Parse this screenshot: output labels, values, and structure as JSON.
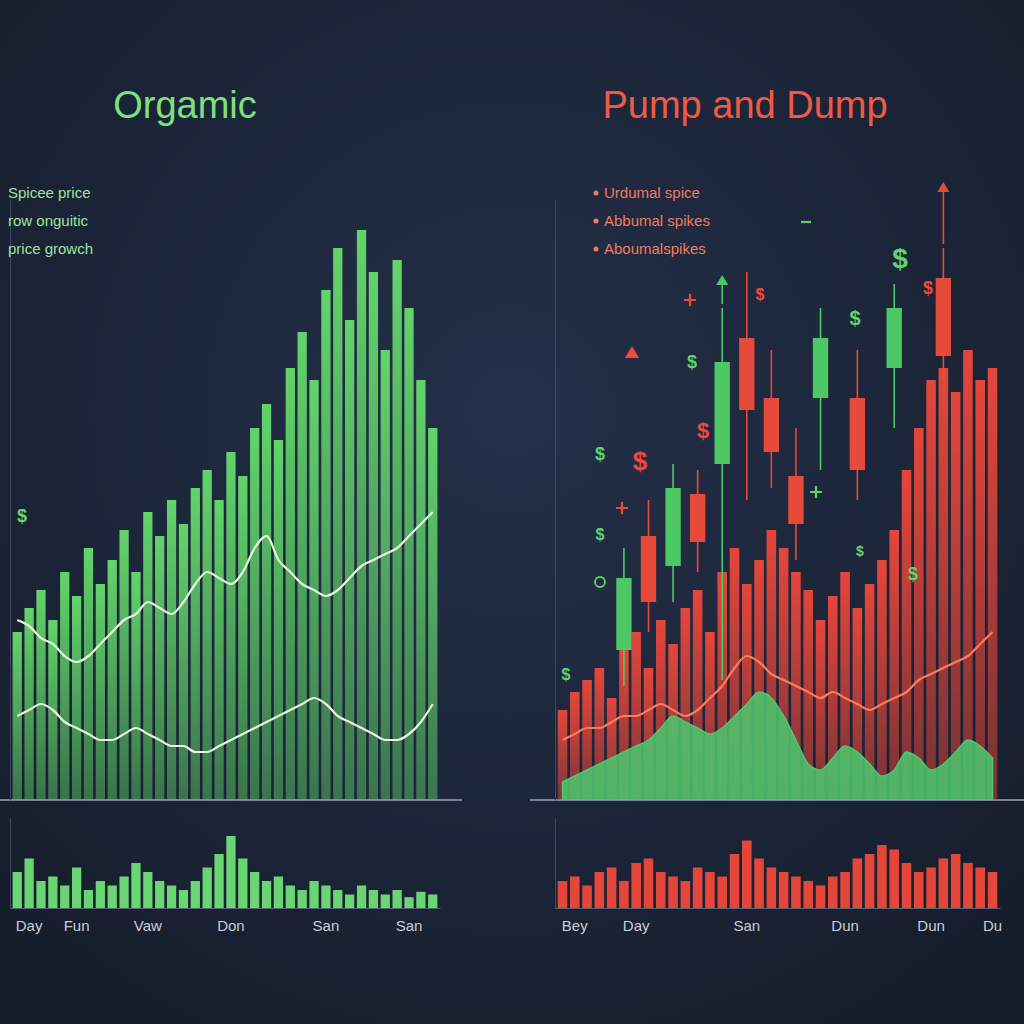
{
  "chart_data": [
    {
      "type": "bar",
      "title": "Orgamic",
      "annotations": [
        "Spicee price",
        "row onguitic",
        "price growch"
      ],
      "symbols": [
        "$"
      ],
      "categories": [
        null,
        "Day",
        null,
        null,
        null,
        "Fun",
        null,
        null,
        null,
        null,
        null,
        "Vaw",
        null,
        null,
        null,
        null,
        null,
        null,
        "Don",
        null,
        null,
        null,
        null,
        null,
        null,
        null,
        "San",
        null,
        null,
        null,
        null,
        null,
        null,
        "San",
        null,
        null
      ],
      "ylim": [
        0,
        100
      ],
      "y2lim": [
        0,
        100
      ],
      "tick_labels": "x",
      "series": [
        {
          "type": "bar",
          "color": "#62d46a",
          "values": [
            28,
            32,
            35,
            30,
            38,
            34,
            42,
            36,
            40,
            45,
            38,
            48,
            44,
            50,
            46,
            52,
            55,
            50,
            58,
            54,
            62,
            66,
            60,
            72,
            78,
            70,
            85,
            92,
            80,
            95,
            88,
            75,
            90,
            82,
            70,
            62
          ]
        },
        {
          "type": "line",
          "color": "#e6f5dc",
          "values": [
            30,
            29,
            27,
            26,
            24,
            23,
            24,
            26,
            28,
            30,
            31,
            33,
            32,
            31,
            33,
            36,
            38,
            37,
            36,
            38,
            42,
            44,
            40,
            38,
            36,
            35,
            34,
            35,
            37,
            39,
            40,
            41,
            42,
            44,
            46,
            48
          ]
        },
        {
          "type": "line",
          "color": "#e6f5dc",
          "values": [
            14,
            15,
            16,
            15,
            13,
            12,
            11,
            10,
            10,
            11,
            12,
            11,
            10,
            9,
            9,
            8,
            8,
            9,
            10,
            11,
            12,
            13,
            14,
            15,
            16,
            17,
            16,
            14,
            13,
            12,
            11,
            10,
            10,
            11,
            13,
            16
          ]
        },
        {
          "type": "bar",
          "axis": "y2",
          "color": "#6ad673",
          "values": [
            40,
            55,
            30,
            35,
            25,
            45,
            20,
            30,
            25,
            35,
            50,
            40,
            30,
            25,
            20,
            30,
            45,
            60,
            80,
            55,
            40,
            30,
            35,
            25,
            20,
            30,
            25,
            20,
            15,
            25,
            20,
            15,
            20,
            12,
            18,
            15
          ]
        }
      ]
    },
    {
      "type": "bar",
      "title": "Pump and Dump",
      "annotations": [
        "Urdumal spice",
        "Abbumal spikes",
        "Aboumalspikes"
      ],
      "symbols": [
        "$",
        "$",
        "$",
        "$",
        "$",
        "$",
        "$",
        "$",
        "$",
        "$",
        "$",
        "$"
      ],
      "categories": [
        null,
        "Bey",
        null,
        null,
        null,
        null,
        "Day",
        null,
        null,
        null,
        null,
        null,
        null,
        null,
        null,
        "San",
        null,
        null,
        null,
        null,
        null,
        null,
        null,
        "Dun",
        null,
        null,
        null,
        null,
        null,
        null,
        "Dun",
        null,
        null,
        null,
        null,
        "Du"
      ],
      "ylim": [
        0,
        100
      ],
      "y2lim": [
        0,
        100
      ],
      "tick_labels": "x",
      "series": [
        {
          "type": "bar",
          "color": "#e5463a",
          "values": [
            15,
            18,
            20,
            22,
            17,
            25,
            28,
            22,
            30,
            26,
            32,
            35,
            28,
            38,
            42,
            36,
            40,
            45,
            42,
            38,
            35,
            30,
            34,
            38,
            32,
            36,
            40,
            45,
            55,
            62,
            70,
            72,
            68,
            75,
            70,
            72
          ]
        },
        {
          "type": "area",
          "color": "#4cc96e",
          "values": [
            3,
            4,
            5,
            6,
            7,
            8,
            9,
            10,
            12,
            14,
            13,
            12,
            11,
            12,
            14,
            16,
            18,
            17,
            14,
            10,
            6,
            5,
            7,
            9,
            8,
            6,
            4,
            5,
            8,
            7,
            5,
            6,
            8,
            10,
            9,
            7
          ]
        },
        {
          "type": "line",
          "color": "#ff7a5a",
          "values": [
            10,
            11,
            12,
            12,
            13,
            14,
            14,
            15,
            16,
            15,
            14,
            15,
            17,
            19,
            22,
            24,
            23,
            21,
            20,
            19,
            18,
            17,
            18,
            17,
            16,
            15,
            16,
            17,
            18,
            20,
            21,
            22,
            23,
            24,
            26,
            28
          ]
        },
        {
          "type": "candlestick",
          "open": [
            null,
            null,
            null,
            null,
            null,
            25,
            null,
            44,
            null,
            39,
            null,
            51,
            null,
            56,
            null,
            77,
            null,
            67,
            null,
            54,
            null,
            67,
            null,
            null,
            67,
            null,
            null,
            72,
            null,
            null,
            null,
            87,
            null,
            null,
            null,
            null
          ],
          "high": [
            null,
            null,
            null,
            null,
            null,
            42,
            null,
            50,
            null,
            56,
            null,
            55,
            null,
            82,
            null,
            88,
            null,
            75,
            null,
            62,
            null,
            82,
            null,
            null,
            75,
            null,
            null,
            86,
            null,
            null,
            null,
            92,
            null,
            null,
            null,
            null
          ],
          "low": [
            null,
            null,
            null,
            null,
            null,
            19,
            null,
            28,
            null,
            33,
            null,
            38,
            null,
            20,
            null,
            50,
            null,
            52,
            null,
            40,
            null,
            55,
            null,
            null,
            50,
            null,
            null,
            62,
            null,
            null,
            null,
            70,
            null,
            null,
            null,
            null
          ],
          "close": [
            null,
            null,
            null,
            null,
            null,
            37,
            null,
            33,
            null,
            52,
            null,
            43,
            null,
            73,
            null,
            65,
            null,
            58,
            null,
            46,
            null,
            77,
            null,
            null,
            55,
            null,
            null,
            82,
            null,
            null,
            null,
            74,
            null,
            null,
            null,
            null
          ],
          "colors": [
            null,
            null,
            null,
            null,
            null,
            "#4cc964",
            null,
            "#e84a3a",
            null,
            "#4cc964",
            null,
            "#e84a3a",
            null,
            "#4cc964",
            null,
            "#e84a3a",
            null,
            "#e84a3a",
            null,
            "#e84a3a",
            null,
            "#4cc964",
            null,
            null,
            "#e84a3a",
            null,
            null,
            "#4cc964",
            null,
            null,
            null,
            "#e84a3a",
            null,
            null,
            null,
            null
          ]
        },
        {
          "type": "bar",
          "axis": "y2",
          "color": "#e5463a",
          "values": [
            30,
            35,
            25,
            40,
            45,
            30,
            50,
            55,
            40,
            35,
            30,
            45,
            40,
            35,
            60,
            75,
            55,
            45,
            40,
            35,
            30,
            25,
            35,
            40,
            55,
            60,
            70,
            65,
            50,
            40,
            45,
            55,
            60,
            50,
            45,
            40
          ]
        }
      ]
    }
  ]
}
